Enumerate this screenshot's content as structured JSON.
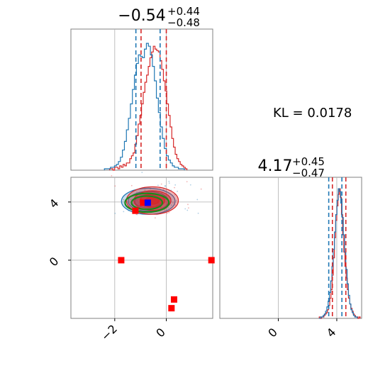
{
  "colors": {
    "model_a": "#d62728",
    "model_b": "#1f77b4",
    "contour_green": "#1a8a1a",
    "marker_red": "#ff0000",
    "marker_blue": "#0000ff",
    "grid": "#b0b0b0",
    "spine": "#808080"
  },
  "chart_data": {
    "type": "corner",
    "parameters": [
      {
        "median": "−0.54",
        "err_plus": "+0.44",
        "err_minus": "−0.48",
        "range": [
          -3.7,
          1.8
        ],
        "ticks": [
          -2,
          0
        ],
        "tick_labels": [
          "−2",
          "0"
        ],
        "quantiles_red": [
          -0.98,
          0.0
        ],
        "quantiles_blue": [
          -1.18,
          -0.24
        ]
      },
      {
        "median": "4.17",
        "err_plus": "+0.45",
        "err_minus": "−0.47",
        "range": [
          -4.0,
          5.7
        ],
        "ticks": [
          0,
          4
        ],
        "tick_labels": [
          "0",
          "4"
        ],
        "quantiles_red": [
          3.7,
          4.62
        ],
        "quantiles_blue": [
          3.45,
          4.35
        ]
      }
    ],
    "grid_lines": {
      "x": [
        -2,
        0
      ],
      "y": [
        0,
        4
      ]
    },
    "annotation": "KL = 0.0178",
    "hist_red": {
      "param0_bins": [
        -2.2,
        0.8
      ],
      "param0_counts": [
        1,
        1,
        0,
        2,
        2,
        1,
        3,
        2,
        4,
        3,
        5,
        5,
        8,
        10,
        12,
        18,
        24,
        32,
        38,
        46,
        54,
        61,
        66,
        72,
        78,
        82,
        86,
        84,
        83,
        82,
        76,
        70,
        62,
        55,
        46,
        38,
        30,
        22,
        16,
        11,
        8,
        6,
        4,
        3,
        2,
        1
      ],
      "param1_bins": [
        2.8,
        5.6
      ],
      "param1_counts": [
        1,
        0,
        1,
        1,
        2,
        3,
        4,
        6,
        9,
        14,
        20,
        30,
        42,
        56,
        68,
        78,
        86,
        90,
        84,
        72,
        58,
        46,
        36,
        28,
        20,
        14,
        10,
        7,
        5,
        3,
        2,
        1,
        1,
        0,
        1
      ]
    },
    "hist_blue": {
      "param0_bins": [
        -2.4,
        0.7
      ],
      "param0_counts": [
        1,
        1,
        1,
        2,
        2,
        3,
        4,
        6,
        9,
        14,
        20,
        28,
        36,
        46,
        56,
        66,
        74,
        80,
        79,
        78,
        84,
        88,
        86,
        80,
        72,
        62,
        50,
        40,
        30,
        22,
        15,
        10,
        7,
        5,
        3,
        2,
        2,
        1,
        1,
        1
      ],
      "param1_bins": [
        2.8,
        5.4
      ],
      "param1_counts": [
        0,
        1,
        1,
        2,
        3,
        5,
        8,
        12,
        18,
        26,
        36,
        48,
        60,
        72,
        82,
        90,
        88,
        80,
        70,
        58,
        46,
        34,
        24,
        16,
        10,
        6,
        4,
        2,
        1,
        1
      ]
    },
    "scatter_markers": {
      "red": [
        [
          -0.9,
          3.95
        ],
        [
          -1.75,
          0.0
        ],
        [
          1.75,
          0.0
        ],
        [
          0.3,
          -2.7
        ],
        [
          0.2,
          -3.3
        ],
        [
          -1.2,
          3.4
        ]
      ],
      "blue": [
        [
          -0.72,
          3.95
        ]
      ]
    },
    "contours": {
      "red_center": [
        -0.54,
        4.1
      ],
      "red_sigma": [
        0.48,
        0.45
      ],
      "blue_center": [
        -0.7,
        4.05
      ],
      "blue_sigma": [
        0.52,
        0.45
      ],
      "green_center": [
        -0.75,
        3.95
      ],
      "green_sigma": [
        0.5,
        0.38
      ]
    }
  }
}
